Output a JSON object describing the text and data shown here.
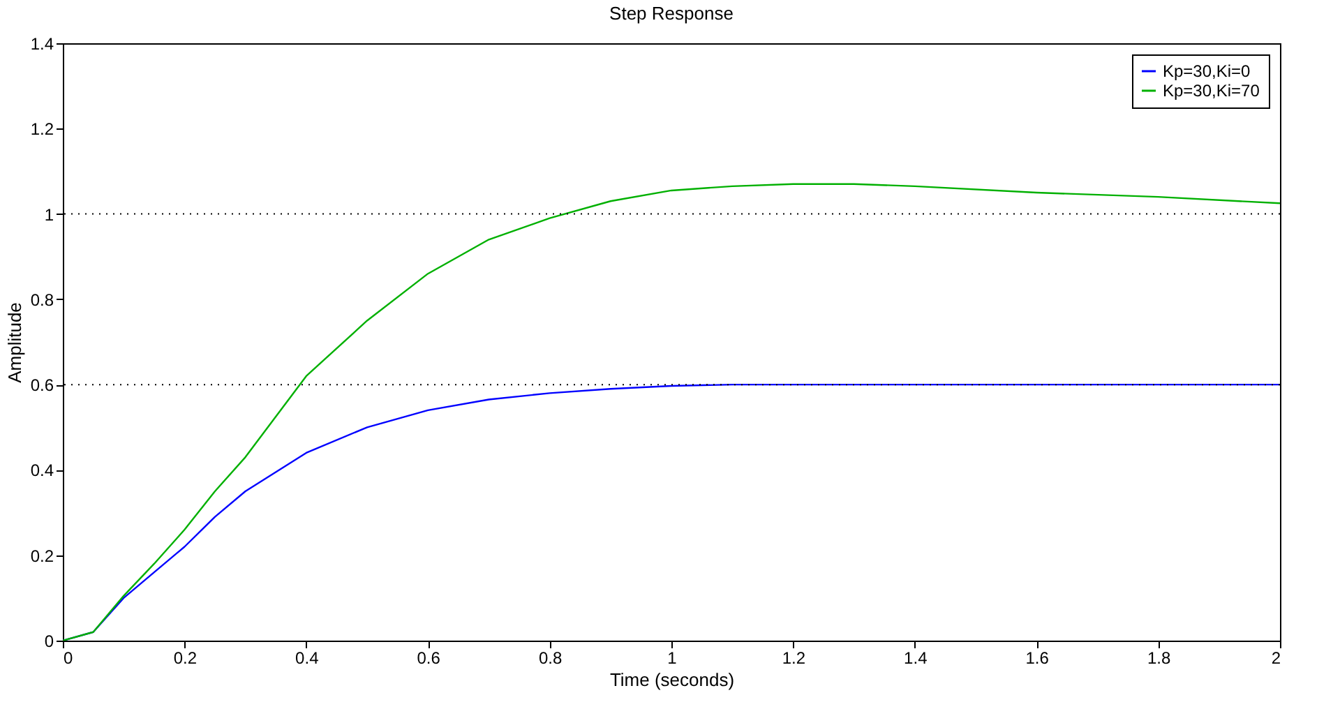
{
  "chart_data": {
    "type": "line",
    "title": "Step Response",
    "xlabel": "Time (seconds)",
    "ylabel": "Amplitude",
    "x": [
      0,
      0.05,
      0.1,
      0.15,
      0.2,
      0.25,
      0.3,
      0.4,
      0.5,
      0.6,
      0.7,
      0.8,
      0.9,
      1.0,
      1.1,
      1.2,
      1.3,
      1.4,
      1.6,
      1.8,
      2.0
    ],
    "series": [
      {
        "name": "Kp=30,Ki=0",
        "color": "#0000ff",
        "values": [
          0,
          0.02,
          0.1,
          0.16,
          0.22,
          0.29,
          0.35,
          0.44,
          0.5,
          0.54,
          0.565,
          0.58,
          0.59,
          0.597,
          0.6,
          0.6,
          0.6,
          0.6,
          0.6,
          0.6,
          0.6
        ]
      },
      {
        "name": "Kp=30,Ki=70",
        "color": "#00b000",
        "values": [
          0,
          0.02,
          0.105,
          0.18,
          0.26,
          0.35,
          0.43,
          0.62,
          0.75,
          0.86,
          0.94,
          0.99,
          1.03,
          1.055,
          1.065,
          1.07,
          1.07,
          1.065,
          1.05,
          1.04,
          1.025
        ]
      }
    ],
    "ref_lines": [
      {
        "axis": "y",
        "value": 1,
        "color": "#000000",
        "line_style": "dotted"
      },
      {
        "axis": "y",
        "value": 0.6,
        "color": "#000000",
        "line_style": "dotted"
      }
    ],
    "xlim": [
      0,
      2
    ],
    "xticks": [
      0,
      0.2,
      0.4,
      0.6,
      0.8,
      1,
      1.2,
      1.4,
      1.6,
      1.8,
      2
    ],
    "ylim": [
      0,
      1.4
    ],
    "yticks": [
      0,
      0.2,
      0.4,
      0.6,
      0.8,
      1,
      1.2,
      1.4
    ],
    "legend": "top right",
    "grid": false
  }
}
